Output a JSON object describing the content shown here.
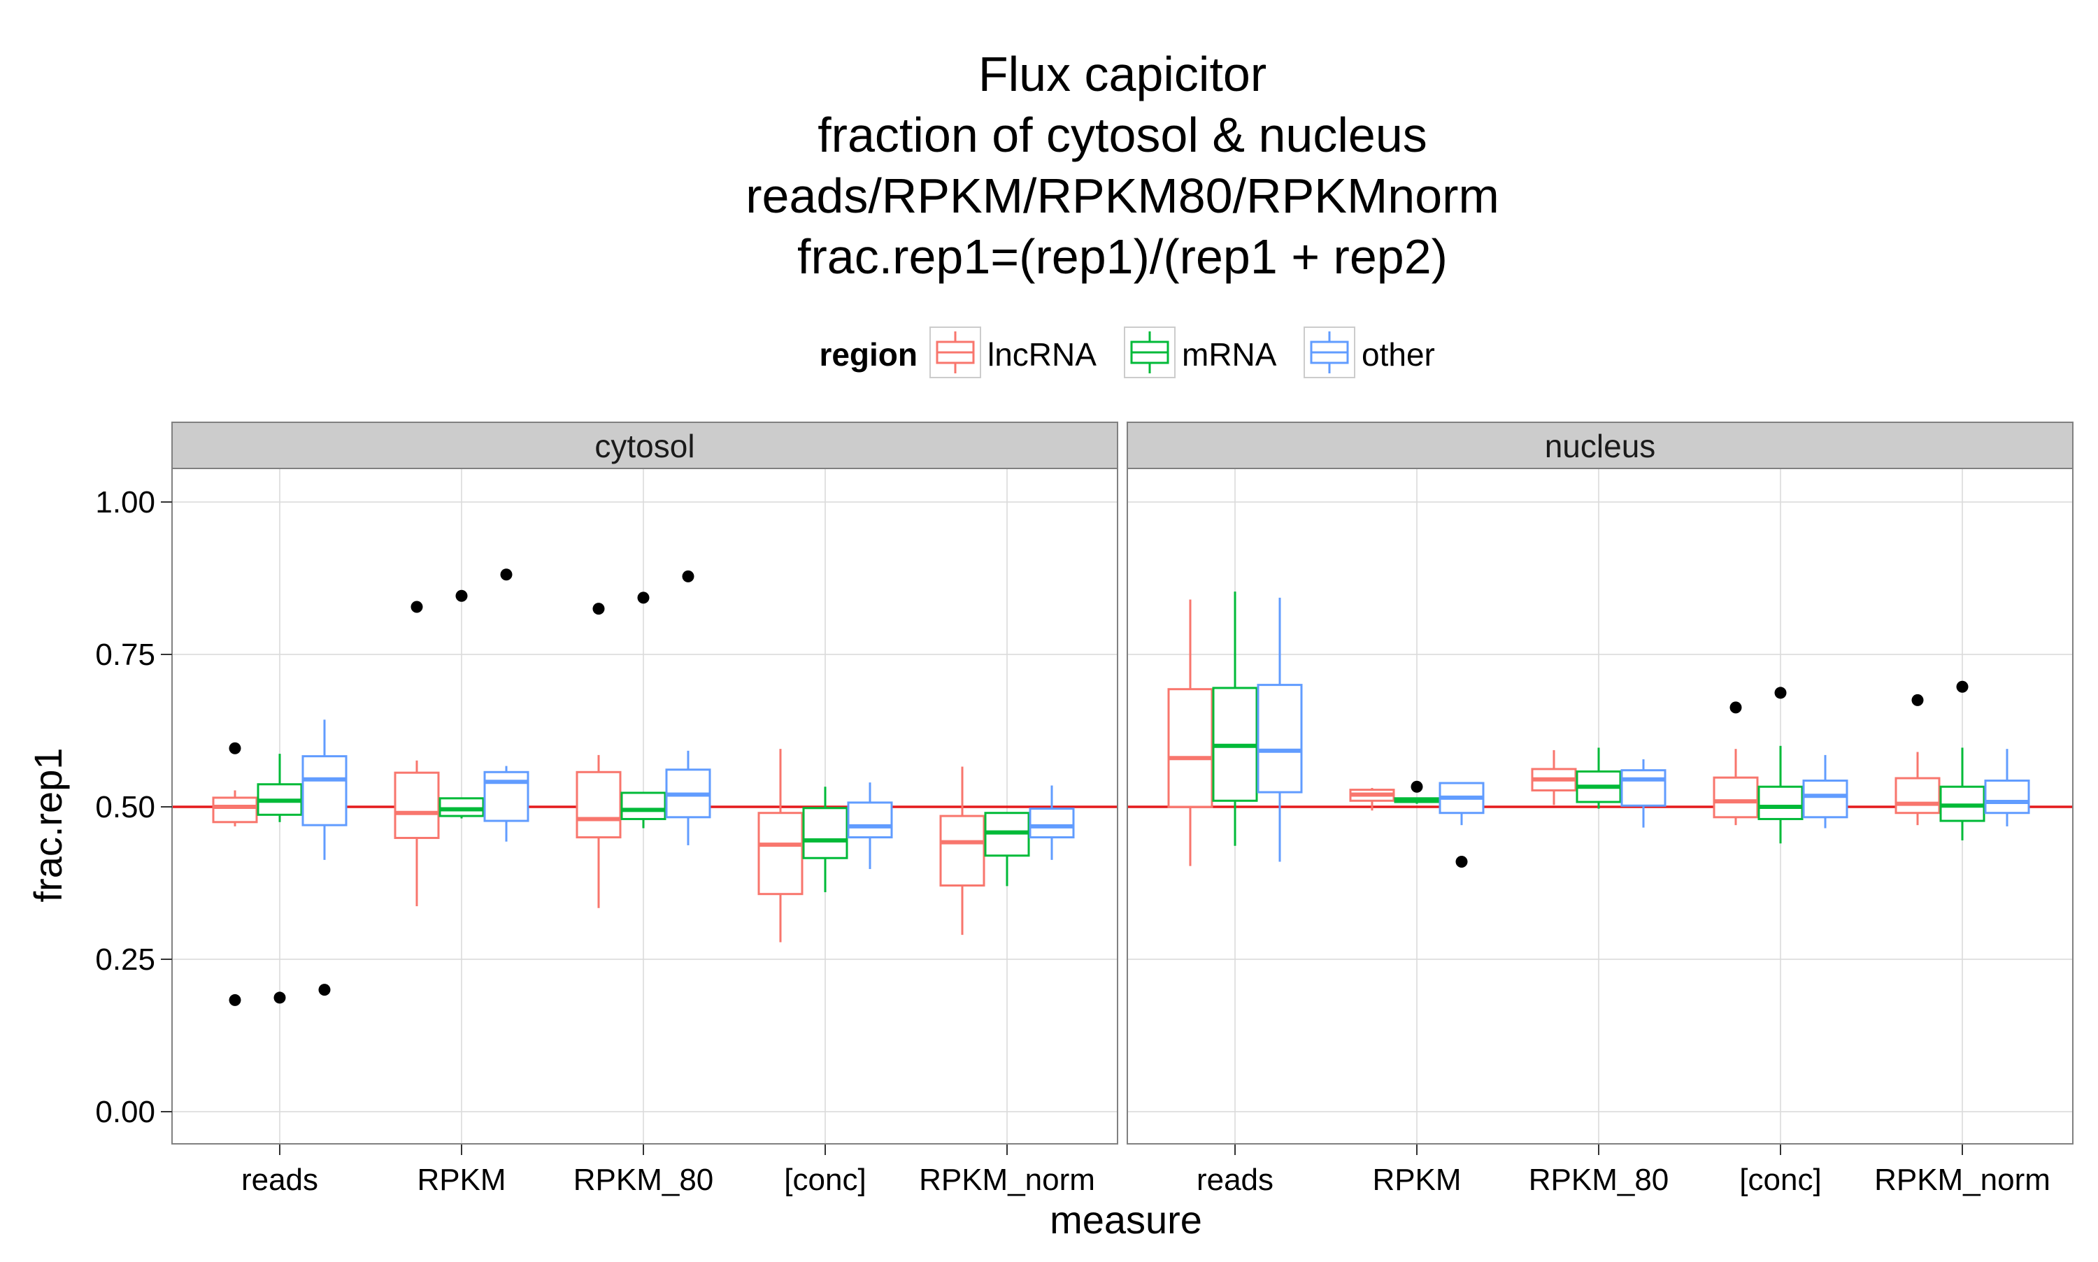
{
  "chart_data": {
    "type": "boxplot",
    "title_lines": [
      "Flux capicitor",
      "fraction of cytosol & nucleus",
      "reads/RPKM/RPKM80/RPKMnorm",
      "frac.rep1=(rep1)/(rep1 + rep2)"
    ],
    "xlabel": "measure",
    "ylabel": "frac.rep1",
    "ylim": [
      -0.045,
      1.1
    ],
    "yticks": [
      0.0,
      0.25,
      0.5,
      0.75,
      1.0
    ],
    "ytick_labels": [
      "0.00",
      "0.25",
      "0.50",
      "0.75",
      "1.00"
    ],
    "reference_line": {
      "y": 0.5,
      "color": "#e41a1c"
    },
    "grid": true,
    "legend": {
      "title": "region",
      "position": "top",
      "entries": [
        {
          "name": "lncRNA",
          "color": "#F8766D"
        },
        {
          "name": "mRNA",
          "color": "#00BA38"
        },
        {
          "name": "other",
          "color": "#619CFF"
        }
      ]
    },
    "categories": [
      "reads",
      "RPKM",
      "RPKM_80",
      "[conc]",
      "RPKM_norm"
    ],
    "panels": [
      {
        "label": "cytosol",
        "boxes": {
          "reads": [
            {
              "region": "lncRNA",
              "whisker_low": 0.468,
              "q1": 0.475,
              "median": 0.5,
              "q3": 0.515,
              "whisker_high": 0.527,
              "outliers": [
                0.596,
                0.183
              ]
            },
            {
              "region": "mRNA",
              "whisker_low": 0.475,
              "q1": 0.487,
              "median": 0.51,
              "q3": 0.537,
              "whisker_high": 0.587,
              "outliers": [
                0.187
              ]
            },
            {
              "region": "other",
              "whisker_low": 0.413,
              "q1": 0.47,
              "median": 0.545,
              "q3": 0.583,
              "whisker_high": 0.643,
              "outliers": [
                0.2
              ]
            }
          ],
          "RPKM": [
            {
              "region": "lncRNA",
              "whisker_low": 0.337,
              "q1": 0.449,
              "median": 0.49,
              "q3": 0.556,
              "whisker_high": 0.576,
              "outliers": [
                0.828
              ]
            },
            {
              "region": "mRNA",
              "whisker_low": 0.481,
              "q1": 0.485,
              "median": 0.496,
              "q3": 0.514,
              "whisker_high": 0.514,
              "outliers": [
                0.846
              ]
            },
            {
              "region": "other",
              "whisker_low": 0.443,
              "q1": 0.477,
              "median": 0.541,
              "q3": 0.557,
              "whisker_high": 0.567,
              "outliers": [
                0.881
              ]
            }
          ],
          "RPKM_80": [
            {
              "region": "lncRNA",
              "whisker_low": 0.334,
              "q1": 0.45,
              "median": 0.48,
              "q3": 0.557,
              "whisker_high": 0.585,
              "outliers": [
                0.825
              ]
            },
            {
              "region": "mRNA",
              "whisker_low": 0.465,
              "q1": 0.48,
              "median": 0.495,
              "q3": 0.523,
              "whisker_high": 0.523,
              "outliers": [
                0.843
              ]
            },
            {
              "region": "other",
              "whisker_low": 0.437,
              "q1": 0.483,
              "median": 0.52,
              "q3": 0.561,
              "whisker_high": 0.592,
              "outliers": [
                0.878
              ]
            }
          ],
          "[conc]": [
            {
              "region": "lncRNA",
              "whisker_low": 0.278,
              "q1": 0.357,
              "median": 0.438,
              "q3": 0.49,
              "whisker_high": 0.595,
              "outliers": []
            },
            {
              "region": "mRNA",
              "whisker_low": 0.36,
              "q1": 0.416,
              "median": 0.445,
              "q3": 0.498,
              "whisker_high": 0.533,
              "outliers": []
            },
            {
              "region": "other",
              "whisker_low": 0.398,
              "q1": 0.45,
              "median": 0.468,
              "q3": 0.507,
              "whisker_high": 0.54,
              "outliers": []
            }
          ],
          "RPKM_norm": [
            {
              "region": "lncRNA",
              "whisker_low": 0.29,
              "q1": 0.371,
              "median": 0.442,
              "q3": 0.485,
              "whisker_high": 0.566,
              "outliers": []
            },
            {
              "region": "mRNA",
              "whisker_low": 0.37,
              "q1": 0.42,
              "median": 0.458,
              "q3": 0.49,
              "whisker_high": 0.49,
              "outliers": []
            },
            {
              "region": "other",
              "whisker_low": 0.413,
              "q1": 0.45,
              "median": 0.468,
              "q3": 0.497,
              "whisker_high": 0.535,
              "outliers": []
            }
          ]
        }
      },
      {
        "label": "nucleus",
        "boxes": {
          "reads": [
            {
              "region": "lncRNA",
              "whisker_low": 0.403,
              "q1": 0.5,
              "median": 0.58,
              "q3": 0.693,
              "whisker_high": 0.84,
              "outliers": []
            },
            {
              "region": "mRNA",
              "whisker_low": 0.436,
              "q1": 0.51,
              "median": 0.6,
              "q3": 0.695,
              "whisker_high": 0.853,
              "outliers": []
            },
            {
              "region": "other",
              "whisker_low": 0.41,
              "q1": 0.524,
              "median": 0.592,
              "q3": 0.7,
              "whisker_high": 0.843,
              "outliers": []
            }
          ],
          "RPKM": [
            {
              "region": "lncRNA",
              "whisker_low": 0.494,
              "q1": 0.51,
              "median": 0.52,
              "q3": 0.528,
              "whisker_high": 0.531,
              "outliers": []
            },
            {
              "region": "mRNA",
              "whisker_low": 0.505,
              "q1": 0.508,
              "median": 0.511,
              "q3": 0.514,
              "whisker_high": 0.514,
              "outliers": [
                0.533
              ]
            },
            {
              "region": "other",
              "whisker_low": 0.47,
              "q1": 0.49,
              "median": 0.515,
              "q3": 0.539,
              "whisker_high": 0.539,
              "outliers": [
                0.41
              ]
            }
          ],
          "RPKM_80": [
            {
              "region": "lncRNA",
              "whisker_low": 0.503,
              "q1": 0.527,
              "median": 0.545,
              "q3": 0.562,
              "whisker_high": 0.593,
              "outliers": []
            },
            {
              "region": "mRNA",
              "whisker_low": 0.497,
              "q1": 0.508,
              "median": 0.533,
              "q3": 0.558,
              "whisker_high": 0.597,
              "outliers": []
            },
            {
              "region": "other",
              "whisker_low": 0.466,
              "q1": 0.502,
              "median": 0.545,
              "q3": 0.56,
              "whisker_high": 0.578,
              "outliers": []
            }
          ],
          "[conc]": [
            {
              "region": "lncRNA",
              "whisker_low": 0.47,
              "q1": 0.483,
              "median": 0.509,
              "q3": 0.548,
              "whisker_high": 0.595,
              "outliers": [
                0.663
              ]
            },
            {
              "region": "mRNA",
              "whisker_low": 0.44,
              "q1": 0.48,
              "median": 0.5,
              "q3": 0.533,
              "whisker_high": 0.6,
              "outliers": [
                0.687
              ]
            },
            {
              "region": "other",
              "whisker_low": 0.465,
              "q1": 0.483,
              "median": 0.518,
              "q3": 0.543,
              "whisker_high": 0.585,
              "outliers": []
            }
          ],
          "RPKM_norm": [
            {
              "region": "lncRNA",
              "whisker_low": 0.47,
              "q1": 0.49,
              "median": 0.505,
              "q3": 0.547,
              "whisker_high": 0.59,
              "outliers": [
                0.675
              ]
            },
            {
              "region": "mRNA",
              "whisker_low": 0.445,
              "q1": 0.477,
              "median": 0.502,
              "q3": 0.533,
              "whisker_high": 0.597,
              "outliers": [
                0.697
              ]
            },
            {
              "region": "other",
              "whisker_low": 0.468,
              "q1": 0.49,
              "median": 0.508,
              "q3": 0.543,
              "whisker_high": 0.595,
              "outliers": []
            }
          ]
        }
      }
    ]
  }
}
